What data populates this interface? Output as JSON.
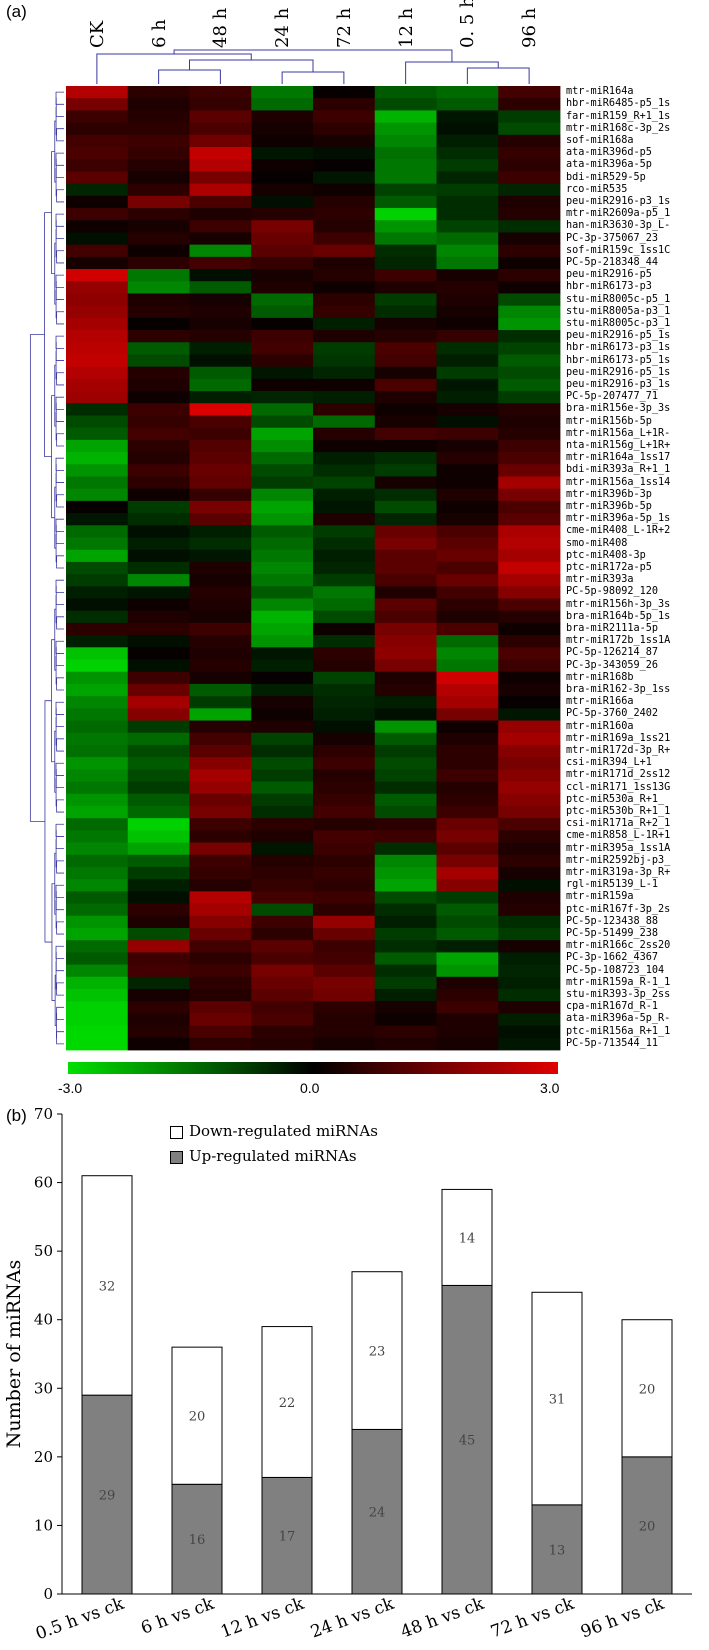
{
  "panels": {
    "a": "(a)",
    "b": "(b)"
  },
  "chart_data": [
    {
      "type": "heatmap",
      "columns": [
        "CK",
        "6 h",
        "48 h",
        "24 h",
        "72 h",
        "12 h",
        "0. 5 h",
        "96 h"
      ],
      "rows": [
        "mtr-miR164a",
        "hbr-miR6485-p5_1s",
        "far-miR159_R+1_1s",
        "mtr-miR168c-3p_2s",
        "sof-miR168a",
        "ata-miR396d-p5",
        "ata-miR396a-5p",
        "bdi-miR529-5p",
        "rco-miR535",
        "peu-miR2916-p3_1s",
        "mtr-miR2609a-p5_1",
        "han-miR3630-3p_L-",
        "PC-3p-375067_23",
        "sof-miR159c_1ss1C",
        "PC-5p-218348_44",
        "peu-miR2916-p5",
        "hbr-miR6173-p3",
        "stu-miR8005c-p5_1",
        "stu-miR8005a-p3_1",
        "stu-miR8005c-p3_1",
        "peu-miR2916-p5_1s",
        "hbr-miR6173-p3_1s",
        "hbr-miR6173-p5_1s",
        "peu-miR2916-p5_1s",
        "peu-miR2916-p3_1s",
        "PC-5p-207477_71",
        "bra-miR156e-3p_3s",
        "mtr-miR156b-5p",
        "mtr-miR156a_L+1R-",
        "nta-miR156g_L+1R+",
        "mtr-miR164a_1ss17",
        "bdi-miR393a_R+1_1",
        "mtr-miR156a_1ss14",
        "mtr-miR396b-3p",
        "mtr-miR396b-5p",
        "mtr-miR396a-5p_1s",
        "cme-miR408_L-1R+2",
        "smo-miR408",
        "ptc-miR408-3p",
        "ptc-miR172a-p5",
        "mtr-miR393a",
        "PC-5p-98092_120",
        "mtr-miR156h-3p_3s",
        "bra-miR164b-5p_1s",
        "bra-miR2111a-5p",
        "mtr-miR172b_1ss1A",
        "PC-5p-126214_87",
        "PC-3p-343059_26",
        "mtr-miR168b",
        "bra-miR162-3p_1ss",
        "mtr-miR166a",
        "PC-5p-3760_2402",
        "mtr-miR160a",
        "mtr-miR169a_1ss21",
        "mtr-miR172d-3p_R+",
        "csi-miR394_L+1",
        "mtr-miR171d_2ss12",
        "ccl-miR171_1ss13G",
        "ptc-miR530a_R+1_",
        "ptc-miR530b_R+1_1",
        "csi-miR171a_R+2_1",
        "cme-miR858_L-1R+1",
        "mtr-miR395a_1ss1A",
        "mtr-miR2592bj-p3_",
        "mtr-miR319a-3p_R+",
        "rgl-miR5139_L-1",
        "mtr-miR159a",
        "ptc-miR167f-3p_2s",
        "PC-5p-123438_88",
        "PC-5p-51499_238",
        "mtr-miR166c_2ss20",
        "PC-3p-1662_4367",
        "PC-5p-108723_104",
        "mtr-miR159a_R-1_1",
        "stu-miR393-3p_2ss",
        "cpa-miR167d_R-1",
        "ata-miR396a-5p_R-",
        "ptc-miR156a_R+1_1",
        "PC-5p-713544_11"
      ],
      "values": [
        [
          2.4,
          0.6,
          0.8,
          -1.6,
          0.1,
          -1.2,
          -1.4,
          0.9
        ],
        [
          1.6,
          0.4,
          0.7,
          -1.4,
          0.6,
          -1.0,
          -1.2,
          0.6
        ],
        [
          0.8,
          0.5,
          1.2,
          0.4,
          0.8,
          -2.4,
          -0.3,
          -0.8
        ],
        [
          0.6,
          0.6,
          1.0,
          0.3,
          0.6,
          -2.0,
          -0.2,
          -1.0
        ],
        [
          0.9,
          0.8,
          1.5,
          0.2,
          0.3,
          -1.8,
          -0.4,
          0.5
        ],
        [
          1.0,
          0.7,
          2.6,
          -0.3,
          -0.2,
          -1.5,
          -0.6,
          0.7
        ],
        [
          0.8,
          0.5,
          2.4,
          0.2,
          0.1,
          -1.6,
          -0.8,
          0.6
        ],
        [
          1.2,
          0.3,
          1.6,
          0.1,
          -0.3,
          -1.6,
          -0.5,
          0.8
        ],
        [
          -0.5,
          0.6,
          2.3,
          0.3,
          0.2,
          -0.9,
          -0.8,
          -0.5
        ],
        [
          0.2,
          1.6,
          1.0,
          -0.2,
          0.5,
          -1.2,
          -0.6,
          0.4
        ],
        [
          0.8,
          0.6,
          0.4,
          0.5,
          0.6,
          -2.8,
          -0.6,
          0.5
        ],
        [
          0.2,
          0.3,
          0.8,
          1.6,
          0.5,
          -2.0,
          -0.9,
          -0.6
        ],
        [
          -0.2,
          0.5,
          0.3,
          1.4,
          0.8,
          -1.6,
          -1.4,
          0.3
        ],
        [
          0.9,
          0.2,
          -1.8,
          1.2,
          1.4,
          -0.6,
          -1.8,
          0.6
        ],
        [
          0.3,
          0.6,
          0.9,
          0.7,
          0.4,
          -0.5,
          -1.6,
          0.2
        ],
        [
          2.8,
          -1.6,
          -0.2,
          0.3,
          0.5,
          0.8,
          0.3,
          0.6
        ],
        [
          2.0,
          -1.8,
          -1.2,
          0.4,
          0.2,
          0.4,
          0.5,
          0.2
        ],
        [
          1.9,
          0.4,
          0.3,
          -1.4,
          0.6,
          -0.8,
          0.4,
          -1.0
        ],
        [
          2.0,
          0.5,
          0.4,
          -1.2,
          0.7,
          -0.6,
          0.3,
          -1.8
        ],
        [
          2.2,
          0.1,
          0.3,
          0.1,
          -0.4,
          0.3,
          0.2,
          -2.0
        ],
        [
          2.4,
          0.6,
          0.5,
          0.8,
          0.4,
          0.5,
          0.7,
          -0.6
        ],
        [
          2.5,
          -1.2,
          -0.4,
          0.9,
          -0.8,
          1.0,
          -0.6,
          -0.9
        ],
        [
          2.6,
          -1.0,
          -0.2,
          0.6,
          -0.7,
          0.9,
          -0.4,
          -1.2
        ],
        [
          2.4,
          0.5,
          -1.2,
          -0.3,
          -0.5,
          0.3,
          -0.8,
          -1.0
        ],
        [
          2.2,
          0.4,
          -1.4,
          0.2,
          0.2,
          1.0,
          -0.3,
          -1.2
        ],
        [
          2.1,
          0.2,
          -0.4,
          -0.5,
          -0.4,
          0.4,
          -0.4,
          -0.8
        ],
        [
          -0.6,
          0.8,
          2.9,
          -1.4,
          0.6,
          0.2,
          0.3,
          0.5
        ],
        [
          -1.0,
          0.7,
          1.0,
          -1.0,
          -1.4,
          0.3,
          -0.2,
          0.4
        ],
        [
          -1.2,
          0.9,
          0.8,
          -2.2,
          0.5,
          0.9,
          0.8,
          0.5
        ],
        [
          -2.2,
          0.6,
          1.1,
          -1.9,
          0.2,
          0.2,
          0.3,
          0.8
        ],
        [
          -2.4,
          0.5,
          1.2,
          -1.4,
          -0.4,
          -0.6,
          0.5,
          1.0
        ],
        [
          -2.0,
          0.8,
          1.4,
          -1.0,
          -0.6,
          -0.8,
          0.2,
          1.4
        ],
        [
          -1.6,
          0.6,
          1.3,
          -0.8,
          -0.9,
          0.3,
          0.2,
          2.2
        ],
        [
          -1.8,
          0.2,
          0.7,
          -1.8,
          -0.4,
          -0.6,
          0.4,
          1.6
        ],
        [
          0.1,
          -0.8,
          1.6,
          -2.2,
          -0.3,
          -1.0,
          0.2,
          1.0
        ],
        [
          -0.3,
          -0.6,
          1.2,
          -2.0,
          0.4,
          -0.5,
          0.3,
          1.2
        ],
        [
          -1.4,
          -0.2,
          -0.4,
          -1.2,
          -0.8,
          1.4,
          1.0,
          2.3
        ],
        [
          -1.6,
          -0.4,
          -0.6,
          -1.4,
          -0.6,
          1.6,
          1.2,
          2.4
        ],
        [
          -2.2,
          -0.2,
          -0.3,
          -1.6,
          -0.4,
          1.2,
          1.4,
          2.2
        ],
        [
          -1.0,
          -0.6,
          0.4,
          -1.8,
          -0.5,
          1.2,
          1.0,
          2.6
        ],
        [
          -0.8,
          -1.8,
          0.3,
          -1.6,
          -0.8,
          1.0,
          1.4,
          2.2
        ],
        [
          -0.4,
          -0.3,
          0.5,
          -1.2,
          -1.6,
          0.4,
          0.9,
          1.8
        ],
        [
          -0.2,
          0.2,
          0.4,
          -1.8,
          -1.4,
          1.2,
          0.6,
          1.0
        ],
        [
          -0.6,
          0.4,
          0.3,
          -2.4,
          -1.0,
          1.0,
          0.4,
          0.5
        ],
        [
          0.6,
          0.6,
          0.8,
          -2.2,
          0.2,
          1.6,
          1.0,
          0.2
        ],
        [
          -0.4,
          -0.2,
          0.5,
          -2.0,
          -0.6,
          1.8,
          -1.4,
          0.6
        ],
        [
          -2.6,
          0.1,
          0.4,
          -0.3,
          0.6,
          1.9,
          -1.8,
          1.0
        ],
        [
          -2.8,
          -0.2,
          0.5,
          -0.4,
          0.5,
          1.6,
          -1.6,
          0.8
        ],
        [
          -2.0,
          0.8,
          0.3,
          0.1,
          -0.9,
          0.4,
          2.8,
          0.2
        ],
        [
          -2.2,
          1.4,
          -1.2,
          -0.4,
          -0.6,
          0.5,
          2.4,
          0.3
        ],
        [
          -1.8,
          2.2,
          -0.8,
          0.3,
          -0.5,
          -0.4,
          2.2,
          0.1
        ],
        [
          -1.6,
          1.8,
          -2.2,
          0.2,
          -0.4,
          -0.2,
          1.6,
          -0.3
        ],
        [
          -1.4,
          -0.8,
          0.5,
          0.4,
          -0.2,
          -2.0,
          0.2,
          2.0
        ],
        [
          -1.6,
          -1.4,
          0.9,
          -0.9,
          0.3,
          -1.2,
          0.4,
          2.2
        ],
        [
          -1.5,
          -1.0,
          1.2,
          -0.6,
          0.6,
          -0.8,
          0.6,
          1.8
        ],
        [
          -2.0,
          -1.2,
          1.8,
          -1.0,
          0.8,
          -1.0,
          0.6,
          1.6
        ],
        [
          -1.8,
          -1.0,
          2.2,
          -0.8,
          0.5,
          -0.9,
          0.8,
          1.8
        ],
        [
          -1.6,
          -0.8,
          2.0,
          -1.2,
          0.6,
          -0.6,
          0.5,
          2.0
        ],
        [
          -2.0,
          -1.2,
          1.4,
          -0.8,
          0.7,
          -1.2,
          0.6,
          1.8
        ],
        [
          -2.2,
          -1.4,
          1.6,
          -0.6,
          0.9,
          -1.0,
          0.8,
          1.6
        ],
        [
          -1.4,
          -2.8,
          0.8,
          0.6,
          0.5,
          0.6,
          1.4,
          1.0
        ],
        [
          -1.6,
          -2.6,
          0.6,
          0.4,
          0.9,
          0.8,
          1.6,
          0.6
        ],
        [
          -1.8,
          -2.2,
          1.6,
          -0.3,
          0.8,
          -0.6,
          1.2,
          0.4
        ],
        [
          -1.4,
          -1.2,
          0.8,
          0.5,
          0.6,
          -1.8,
          1.6,
          0.6
        ],
        [
          -1.6,
          -0.8,
          0.7,
          0.6,
          0.7,
          -2.0,
          2.2,
          0.3
        ],
        [
          -1.8,
          -0.4,
          0.5,
          0.7,
          0.6,
          -2.2,
          1.8,
          -0.2
        ],
        [
          -1.2,
          -0.2,
          2.4,
          0.9,
          0.8,
          -1.0,
          -0.8,
          0.4
        ],
        [
          -1.4,
          0.6,
          2.2,
          -1.0,
          0.6,
          -0.6,
          -1.2,
          0.5
        ],
        [
          -2.0,
          0.4,
          1.8,
          0.8,
          2.0,
          -0.4,
          -1.0,
          -0.6
        ],
        [
          -2.2,
          -1.0,
          1.4,
          0.6,
          1.4,
          -0.8,
          -1.2,
          -0.8
        ],
        [
          -1.4,
          2.0,
          0.9,
          1.2,
          0.8,
          -0.6,
          -0.4,
          0.3
        ],
        [
          -1.2,
          0.8,
          0.6,
          1.0,
          0.9,
          -1.2,
          -2.2,
          -0.4
        ],
        [
          -1.8,
          0.9,
          0.8,
          1.6,
          1.2,
          -0.6,
          -2.0,
          -0.5
        ],
        [
          -2.4,
          -0.5,
          0.6,
          1.4,
          1.6,
          -0.8,
          0.4,
          -0.4
        ],
        [
          -2.6,
          0.3,
          0.5,
          1.2,
          1.5,
          -0.4,
          0.6,
          -0.6
        ],
        [
          -2.8,
          0.6,
          1.2,
          0.9,
          0.6,
          0.3,
          0.8,
          0.4
        ],
        [
          -2.8,
          0.4,
          1.4,
          1.0,
          0.5,
          0.2,
          0.4,
          -0.4
        ],
        [
          -2.9,
          0.5,
          1.0,
          0.6,
          0.5,
          0.6,
          0.4,
          -0.2
        ],
        [
          -2.9,
          0.2,
          0.6,
          0.5,
          0.3,
          0.4,
          0.3,
          -0.3
        ]
      ],
      "colormap": {
        "low": "#00e000",
        "mid": "#000000",
        "high": "#e00000"
      },
      "scale_range": [
        -3.0,
        3.0
      ],
      "legend_ticks": [
        "-3.0",
        "0.0",
        "3.0"
      ]
    },
    {
      "type": "bar",
      "stacked": true,
      "categories": [
        "0.5 h vs ck",
        "6 h vs ck",
        "12 h vs ck",
        "24 h vs ck",
        "48 h vs ck",
        "72 h vs ck",
        "96 h vs ck"
      ],
      "series": [
        {
          "name": "Up-regulated miRNAs",
          "values": [
            29,
            16,
            17,
            24,
            45,
            13,
            20
          ],
          "color": "#808080"
        },
        {
          "name": "Down-regulated miRNAs",
          "values": [
            32,
            20,
            22,
            23,
            14,
            31,
            20
          ],
          "color": "#ffffff"
        }
      ],
      "ylabel": "Number of miRNAs",
      "ylim": [
        0,
        70
      ],
      "yticks": [
        "0",
        "10",
        "20",
        "30",
        "40",
        "50",
        "60",
        "70"
      ],
      "legend_position": "top-left"
    }
  ]
}
